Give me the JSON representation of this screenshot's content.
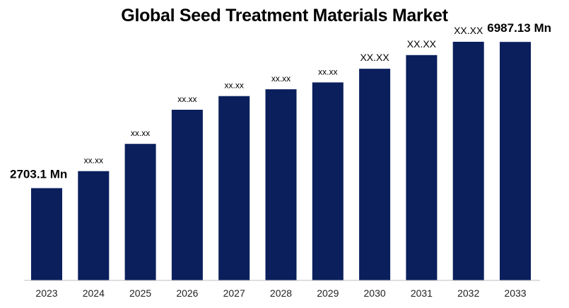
{
  "chart_data": {
    "type": "bar",
    "title": "Global Seed Treatment Materials Market",
    "xlabel": "",
    "ylabel": "",
    "categories": [
      "2023",
      "2024",
      "2025",
      "2026",
      "2027",
      "2028",
      "2029",
      "2030",
      "2031",
      "2032",
      "2033"
    ],
    "values": [
      2703.1,
      3200,
      4000,
      5000,
      5400,
      5600,
      5800,
      6200,
      6600,
      6990,
      6987.13
    ],
    "data_labels": [
      "2703.1 Mn",
      "xx.xx",
      "xx.xx",
      "xx.xx",
      "xx.xx",
      "xx.xx",
      "xx.xx",
      "XX.XX",
      "XX.XX",
      "XX.XX",
      "6987.13 Mn"
    ],
    "ylim": [
      0,
      7800
    ],
    "grid": false,
    "legend": "none",
    "bar_color": "#0a1f5c",
    "axis_color": "#bfbfbf"
  }
}
